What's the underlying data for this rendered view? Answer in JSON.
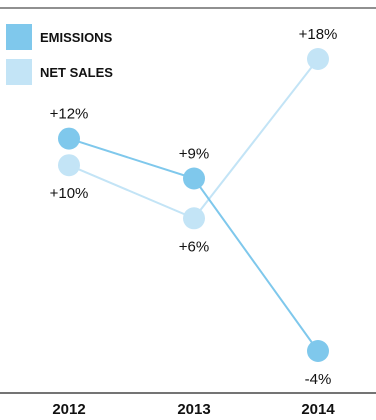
{
  "chart_data": {
    "type": "line",
    "categories": [
      "2012",
      "2013",
      "2014"
    ],
    "series": [
      {
        "name": "EMISSIONS",
        "values": [
          12,
          9,
          -4
        ],
        "labels": [
          "+12%",
          "+9%",
          "-4%"
        ],
        "color": "#7fc8ec"
      },
      {
        "name": "NET SALES",
        "values": [
          10,
          6,
          18
        ],
        "labels": [
          "+10%",
          "+6%",
          "+18%"
        ],
        "color": "#c3e4f6"
      }
    ],
    "ylim": [
      -4,
      18
    ],
    "legend_position": "top-left",
    "grid": false
  }
}
